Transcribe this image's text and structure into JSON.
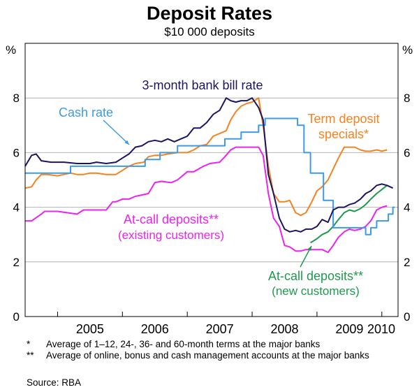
{
  "header": {
    "title": "Deposit Rates",
    "subtitle": "$10 000 deposits",
    "unit_left": "%",
    "unit_right": "%"
  },
  "colors": {
    "bill": "#1b1464",
    "cash": "#3d9be6",
    "term": "#f5821f",
    "existing": "#ee22ee",
    "newcust": "#1f9a4d",
    "grid": "#b4b4b4"
  },
  "footnotes": [
    {
      "mark": "*",
      "text": "Average of 1–12, 24-, 36- and 60-month terms at the major banks"
    },
    {
      "mark": "**",
      "text": "Average of online, bonus and cash management accounts at the major banks"
    }
  ],
  "source": "Source: RBA",
  "chart_data": {
    "type": "line",
    "title": "Deposit Rates",
    "subtitle": "$10 000 deposits",
    "ylabel": "%",
    "ylim": [
      0,
      10
    ],
    "xlim": [
      2004.5,
      2010.25
    ],
    "yticks": [
      0,
      2,
      4,
      6,
      8
    ],
    "xtick_labels": [
      "2005",
      "2006",
      "2007",
      "2008",
      "2009",
      "2010"
    ],
    "grid": true,
    "series": [
      {
        "name": "3-month bank bill rate",
        "label": "3-month bank bill rate",
        "color_key": "bill",
        "x": [
          2004.5,
          2004.6,
          2004.67,
          2004.75,
          2004.9,
          2005.1,
          2005.3,
          2005.5,
          2005.6,
          2005.75,
          2005.9,
          2006.0,
          2006.1,
          2006.2,
          2006.3,
          2006.4,
          2006.5,
          2006.6,
          2006.7,
          2006.8,
          2006.9,
          2007.0,
          2007.1,
          2007.2,
          2007.3,
          2007.4,
          2007.5,
          2007.6,
          2007.67,
          2007.75,
          2007.83,
          2007.92,
          2008.0,
          2008.1,
          2008.17,
          2008.25,
          2008.33,
          2008.42,
          2008.5,
          2008.58,
          2008.67,
          2008.75,
          2008.83,
          2008.92,
          2009.0,
          2009.08,
          2009.17,
          2009.25,
          2009.33,
          2009.42,
          2009.5,
          2009.58,
          2009.67,
          2009.75,
          2009.83,
          2009.92,
          2010.0,
          2010.08,
          2010.17
        ],
        "values": [
          5.5,
          5.9,
          5.95,
          5.7,
          5.65,
          5.65,
          5.6,
          5.6,
          5.65,
          5.6,
          5.65,
          5.8,
          5.95,
          6.2,
          6.25,
          6.4,
          6.45,
          6.4,
          6.5,
          6.4,
          6.5,
          6.6,
          6.9,
          6.9,
          7.1,
          7.4,
          7.55,
          8.0,
          7.9,
          7.85,
          7.9,
          7.9,
          8.0,
          7.65,
          7.2,
          5.2,
          4.5,
          3.6,
          3.2,
          3.1,
          3.15,
          3.1,
          3.2,
          3.2,
          3.3,
          3.55,
          3.45,
          3.9,
          4.0,
          4.0,
          4.1,
          4.15,
          4.3,
          4.5,
          4.6,
          4.8,
          4.85,
          4.8,
          4.7
        ]
      },
      {
        "name": "Cash rate",
        "label": "Cash rate",
        "color_key": "cash",
        "x": [
          2004.5,
          2005.2,
          2005.2,
          2006.35,
          2006.35,
          2006.58,
          2006.58,
          2006.85,
          2006.85,
          2007.58,
          2007.58,
          2007.83,
          2007.83,
          2008.1,
          2008.1,
          2008.2,
          2008.2,
          2008.7,
          2008.7,
          2008.8,
          2008.8,
          2008.9,
          2008.9,
          2009.1,
          2009.1,
          2009.25,
          2009.25,
          2009.75,
          2009.75,
          2009.83,
          2009.83,
          2009.92,
          2009.92,
          2010.1,
          2010.1,
          2010.17,
          2010.17,
          2010.2
        ],
        "values": [
          5.25,
          5.25,
          5.5,
          5.5,
          5.75,
          5.75,
          6.0,
          6.0,
          6.25,
          6.25,
          6.5,
          6.5,
          6.75,
          6.75,
          7.0,
          7.0,
          7.25,
          7.25,
          7.0,
          7.0,
          6.0,
          6.0,
          5.25,
          5.25,
          4.25,
          4.25,
          3.25,
          3.25,
          3.0,
          3.0,
          3.25,
          3.25,
          3.5,
          3.5,
          3.75,
          3.75,
          4.0,
          4.0
        ]
      },
      {
        "name": "Term deposit specials*",
        "label_lines": [
          "Term deposit",
          "specials*"
        ],
        "color_key": "term",
        "x": [
          2004.5,
          2004.6,
          2004.67,
          2004.75,
          2004.85,
          2005.0,
          2005.1,
          2005.2,
          2005.3,
          2005.4,
          2005.5,
          2005.6,
          2005.75,
          2005.9,
          2006.0,
          2006.1,
          2006.2,
          2006.33,
          2006.4,
          2006.5,
          2006.6,
          2006.7,
          2006.85,
          2007.0,
          2007.1,
          2007.2,
          2007.3,
          2007.4,
          2007.5,
          2007.6,
          2007.67,
          2007.75,
          2007.83,
          2007.92,
          2008.0,
          2008.1,
          2008.17,
          2008.25,
          2008.33,
          2008.42,
          2008.5,
          2008.58,
          2008.67,
          2008.75,
          2008.83,
          2008.92,
          2009.0,
          2009.08,
          2009.17,
          2009.25,
          2009.33,
          2009.42,
          2009.5,
          2009.58,
          2009.67,
          2009.75,
          2009.83,
          2009.92,
          2010.0,
          2010.08
        ],
        "values": [
          4.7,
          4.75,
          5.0,
          5.2,
          5.2,
          5.15,
          5.2,
          5.25,
          5.2,
          5.2,
          5.25,
          5.25,
          5.2,
          5.2,
          5.35,
          5.5,
          5.6,
          5.65,
          5.85,
          5.9,
          5.9,
          5.95,
          6.0,
          6.0,
          6.1,
          6.25,
          6.3,
          6.6,
          6.7,
          6.8,
          7.2,
          7.5,
          7.7,
          7.8,
          7.85,
          8.0,
          7.0,
          5.5,
          4.5,
          4.2,
          4.2,
          4.25,
          3.8,
          3.7,
          3.8,
          4.2,
          4.6,
          4.75,
          5.0,
          5.4,
          5.8,
          6.2,
          6.2,
          6.2,
          6.1,
          6.05,
          6.05,
          6.1,
          6.05,
          6.1
        ]
      },
      {
        "name": "At-call deposits** (existing customers)",
        "label_lines": [
          "At-call deposits**",
          "(existing customers)"
        ],
        "color_key": "existing",
        "x": [
          2004.5,
          2004.6,
          2004.75,
          2004.8,
          2005.0,
          2005.3,
          2005.4,
          2005.5,
          2005.75,
          2005.85,
          2005.9,
          2006.0,
          2006.1,
          2006.2,
          2006.3,
          2006.4,
          2006.5,
          2006.6,
          2006.75,
          2006.85,
          2007.0,
          2007.1,
          2007.25,
          2007.35,
          2007.5,
          2007.58,
          2007.67,
          2007.75,
          2007.83,
          2008.0,
          2008.1,
          2008.17,
          2008.25,
          2008.33,
          2008.42,
          2008.5,
          2008.58,
          2008.67,
          2008.75,
          2008.83,
          2008.92,
          2009.0,
          2009.08,
          2009.17,
          2009.25,
          2009.33,
          2009.42,
          2009.5,
          2009.58,
          2009.67,
          2009.75,
          2009.83,
          2009.92,
          2010.0,
          2010.08
        ],
        "values": [
          3.5,
          3.5,
          3.75,
          3.85,
          3.85,
          3.75,
          3.9,
          3.9,
          3.9,
          4.2,
          4.2,
          4.3,
          4.3,
          4.4,
          4.45,
          4.5,
          4.9,
          4.95,
          4.9,
          5.0,
          5.3,
          5.3,
          5.5,
          5.6,
          5.65,
          5.85,
          6.1,
          6.2,
          6.2,
          6.2,
          6.2,
          5.9,
          4.5,
          3.6,
          3.3,
          2.6,
          2.55,
          2.4,
          2.4,
          2.45,
          2.45,
          2.45,
          2.45,
          2.35,
          2.6,
          2.9,
          3.1,
          3.2,
          3.15,
          3.2,
          3.3,
          3.5,
          3.9,
          4.0,
          4.05
        ]
      },
      {
        "name": "At-call deposits** (new customers)",
        "label_lines": [
          "At-call deposits**",
          "(new customers)"
        ],
        "color_key": "newcust",
        "x": [
          2008.9,
          2009.0,
          2009.08,
          2009.17,
          2009.25,
          2009.33,
          2009.42,
          2009.5,
          2009.58,
          2009.67,
          2009.75,
          2009.83,
          2009.92,
          2010.0,
          2010.08
        ],
        "values": [
          2.7,
          2.85,
          3.0,
          3.1,
          3.3,
          3.55,
          3.8,
          3.9,
          3.85,
          3.95,
          4.1,
          4.3,
          4.5,
          4.65,
          4.8
        ]
      }
    ]
  }
}
